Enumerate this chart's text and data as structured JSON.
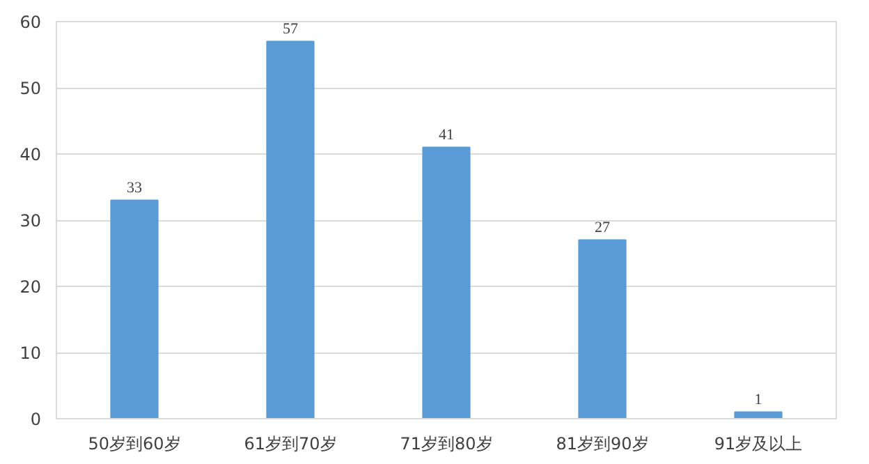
{
  "chart_data": {
    "type": "bar",
    "categories": [
      "50岁到60岁",
      "61岁到70岁",
      "71岁到80岁",
      "81岁到90岁",
      "91岁及以上"
    ],
    "values": [
      33,
      57,
      41,
      27,
      1
    ],
    "color": "#5b9bd5",
    "ylim": [
      0,
      60
    ],
    "yticks": [
      0,
      10,
      20,
      30,
      40,
      50,
      60
    ],
    "grid": "y",
    "data_labels": true
  }
}
